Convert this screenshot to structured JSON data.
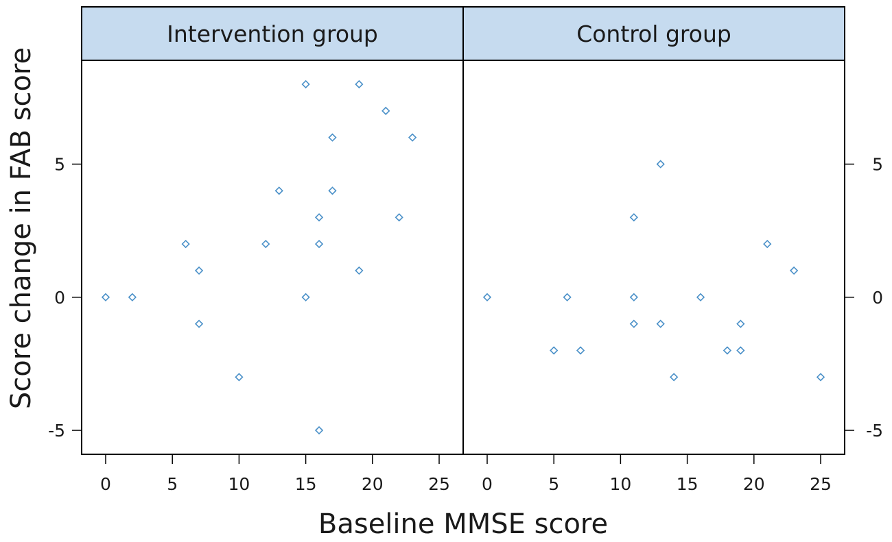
{
  "chart_data": {
    "type": "scatter",
    "xlabel": "Baseline MMSE score",
    "ylabel": "Score change in FAB score",
    "xlim": [
      -1.8,
      26.8
    ],
    "ylim": [
      -5.9,
      8.9
    ],
    "x_ticks": [
      "0",
      "5",
      "10",
      "15",
      "20",
      "25"
    ],
    "x_tick_values": [
      0,
      5,
      10,
      15,
      20,
      25
    ],
    "y_ticks": [
      "-5",
      "0",
      "5"
    ],
    "y_tick_values": [
      -5,
      0,
      5
    ],
    "marker_color": "#4a90c8",
    "strip_color": "#c6dbef",
    "panels": [
      {
        "title": "Intervention group",
        "points": [
          [
            0,
            0
          ],
          [
            2,
            0
          ],
          [
            6,
            2
          ],
          [
            7,
            1
          ],
          [
            7,
            -1
          ],
          [
            10,
            -3
          ],
          [
            12,
            2
          ],
          [
            13,
            4
          ],
          [
            15,
            8
          ],
          [
            15,
            0
          ],
          [
            16,
            3
          ],
          [
            16,
            2
          ],
          [
            16,
            -5
          ],
          [
            17,
            6
          ],
          [
            17,
            4
          ],
          [
            19,
            8
          ],
          [
            19,
            1
          ],
          [
            21,
            7
          ],
          [
            22,
            3
          ],
          [
            23,
            6
          ]
        ]
      },
      {
        "title": "Control group",
        "points": [
          [
            0,
            0
          ],
          [
            5,
            -2
          ],
          [
            6,
            0
          ],
          [
            7,
            -2
          ],
          [
            11,
            3
          ],
          [
            11,
            0
          ],
          [
            11,
            -1
          ],
          [
            13,
            5
          ],
          [
            13,
            -1
          ],
          [
            14,
            -3
          ],
          [
            16,
            0
          ],
          [
            18,
            -2
          ],
          [
            19,
            -1
          ],
          [
            19,
            -2
          ],
          [
            21,
            2
          ],
          [
            23,
            1
          ],
          [
            25,
            -3
          ]
        ]
      }
    ]
  }
}
